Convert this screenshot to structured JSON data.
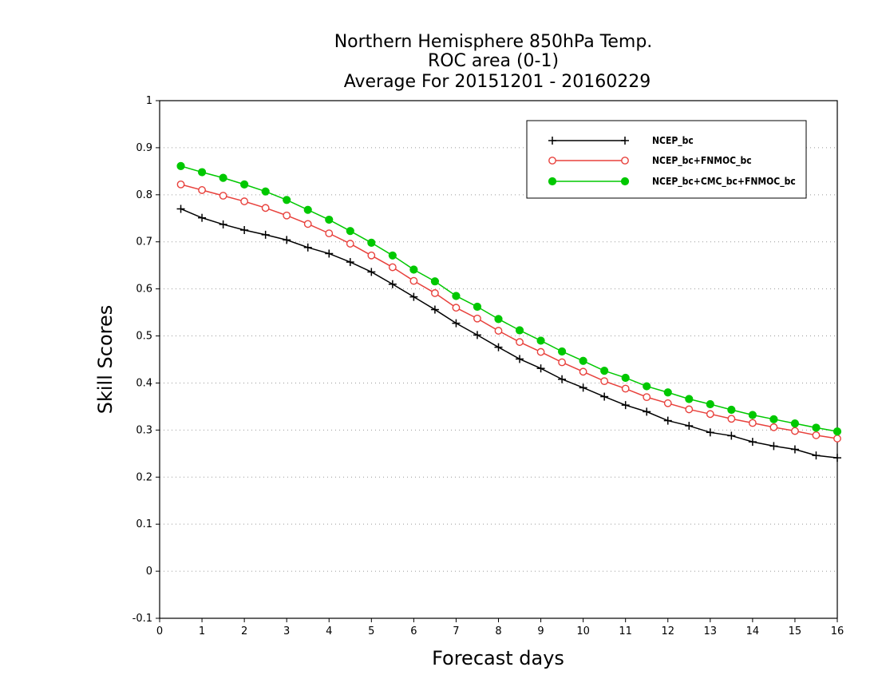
{
  "chart_data": {
    "type": "line",
    "title_lines": [
      "Northern Hemisphere 850hPa Temp.",
      "ROC area (0-1)",
      "Average For 20151201 - 20160229"
    ],
    "xlabel": "Forecast days",
    "ylabel": "Skill Scores",
    "xlim": [
      0,
      16
    ],
    "ylim": [
      -0.1,
      1
    ],
    "x_ticks": [
      "0",
      "1",
      "2",
      "3",
      "4",
      "5",
      "6",
      "7",
      "8",
      "9",
      "10",
      "11",
      "12",
      "13",
      "14",
      "15",
      "16"
    ],
    "y_ticks": [
      "-0.1",
      "0",
      "0.1",
      "0.2",
      "0.3",
      "0.4",
      "0.5",
      "0.6",
      "0.7",
      "0.8",
      "0.9",
      "1"
    ],
    "grid": "horizontal dotted",
    "legend_position": "top-right",
    "x": [
      0.5,
      1,
      1.5,
      2,
      2.5,
      3,
      3.5,
      4,
      4.5,
      5,
      5.5,
      6,
      6.5,
      7,
      7.5,
      8,
      8.5,
      9,
      9.5,
      10,
      10.5,
      11,
      11.5,
      12,
      12.5,
      13,
      13.5,
      14,
      14.5,
      15,
      15.5,
      16
    ],
    "series": [
      {
        "name": "NCEP_bc",
        "color": "#000000",
        "marker": "plus",
        "values": [
          0.77,
          0.751,
          0.737,
          0.725,
          0.715,
          0.704,
          0.688,
          0.675,
          0.657,
          0.636,
          0.61,
          0.583,
          0.556,
          0.527,
          0.502,
          0.476,
          0.451,
          0.431,
          0.408,
          0.39,
          0.371,
          0.353,
          0.339,
          0.32,
          0.309,
          0.295,
          0.288,
          0.275,
          0.266,
          0.259,
          0.246,
          0.241
        ]
      },
      {
        "name": "NCEP_bc+FNMOC_bc",
        "color": "#e8413c",
        "marker": "open-circle",
        "values": [
          0.822,
          0.81,
          0.798,
          0.786,
          0.772,
          0.756,
          0.738,
          0.718,
          0.696,
          0.671,
          0.646,
          0.617,
          0.591,
          0.56,
          0.537,
          0.511,
          0.487,
          0.466,
          0.444,
          0.424,
          0.404,
          0.388,
          0.37,
          0.357,
          0.344,
          0.334,
          0.324,
          0.315,
          0.306,
          0.298,
          0.289,
          0.282
        ]
      },
      {
        "name": "NCEP_bc+CMC_bc+FNMOC_bc",
        "color": "#00c800",
        "marker": "filled-circle",
        "values": [
          0.861,
          0.848,
          0.836,
          0.822,
          0.807,
          0.789,
          0.768,
          0.747,
          0.723,
          0.698,
          0.671,
          0.641,
          0.616,
          0.585,
          0.562,
          0.536,
          0.512,
          0.49,
          0.467,
          0.447,
          0.426,
          0.411,
          0.393,
          0.38,
          0.366,
          0.355,
          0.343,
          0.332,
          0.323,
          0.314,
          0.305,
          0.297
        ]
      }
    ]
  }
}
